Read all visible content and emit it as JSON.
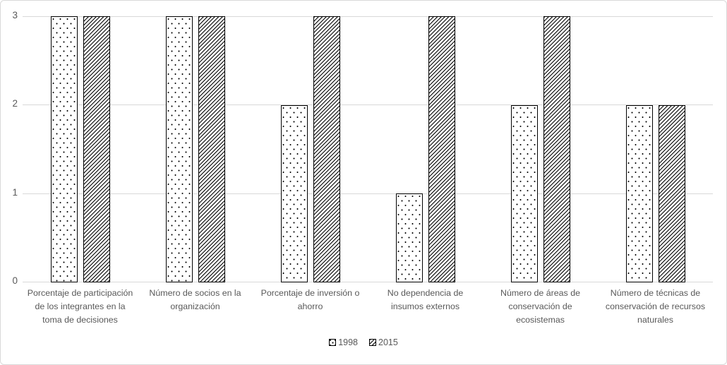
{
  "chart_data": {
    "type": "bar",
    "title": "",
    "xlabel": "",
    "ylabel": "",
    "categories": [
      "Porcentaje de participación\nde los integrantes en la\ntoma de decisiones",
      "Número de socios en la\norganización",
      "Porcentaje de inversión o\nahorro",
      "No dependencia de\ninsumos externos",
      "Número de áreas de\nconservación de\necosistemas",
      "Número de técnicas de\nconservación de recursos\nnaturales"
    ],
    "series": [
      {
        "name": "1998",
        "pattern": "dots",
        "values": [
          3,
          3,
          2,
          1,
          2,
          2
        ]
      },
      {
        "name": "2015",
        "pattern": "diagonal-hatch",
        "values": [
          3,
          3,
          3,
          3,
          3,
          2
        ]
      }
    ],
    "ylim": [
      0,
      3
    ],
    "yticks": [
      0,
      1,
      2,
      3
    ],
    "grid": true,
    "legend_position": "bottom",
    "colors": {
      "bar_fill": "#ffffff",
      "bar_border": "#000000",
      "gridline": "#d9d9d9",
      "axis_text": "#595959",
      "label_text": "#595959",
      "chart_border": "#d9d9d9",
      "background": "#ffffff"
    }
  }
}
